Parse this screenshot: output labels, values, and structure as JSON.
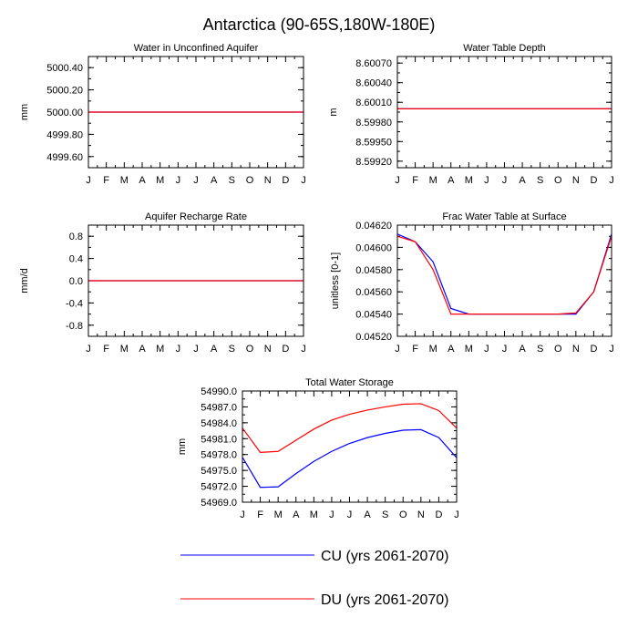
{
  "title": "Antarctica (90-65S,180W-180E)",
  "months": [
    "J",
    "F",
    "M",
    "A",
    "M",
    "J",
    "J",
    "A",
    "S",
    "O",
    "N",
    "D",
    "J"
  ],
  "colors": {
    "cu": "#0000ff",
    "du": "#ff0000"
  },
  "legend": {
    "cu_label": "CU (yrs 2061-2070)",
    "du_label": "DU (yrs 2061-2070)"
  },
  "chart_data": [
    {
      "type": "line",
      "id": "wa",
      "title": "Water in Unconfined Aquifer",
      "ylabel": "mm",
      "ylim": [
        4999.5,
        5000.5
      ],
      "yticks": [
        4999.6,
        4999.8,
        5000.0,
        5000.2,
        5000.4
      ],
      "ytick_labels": [
        "4999.60",
        "4999.80",
        "5000.00",
        "5000.20",
        "5000.40"
      ],
      "series": [
        {
          "key": "cu",
          "values": [
            5000,
            5000,
            5000,
            5000,
            5000,
            5000,
            5000,
            5000,
            5000,
            5000,
            5000,
            5000,
            5000
          ]
        },
        {
          "key": "du",
          "values": [
            5000,
            5000,
            5000,
            5000,
            5000,
            5000,
            5000,
            5000,
            5000,
            5000,
            5000,
            5000,
            5000
          ]
        }
      ]
    },
    {
      "type": "line",
      "id": "zwt",
      "title": "Water Table Depth",
      "ylabel": "m",
      "ylim": [
        8.5991,
        8.6008
      ],
      "yticks": [
        8.5992,
        8.5995,
        8.5998,
        8.6001,
        8.6004,
        8.6007
      ],
      "ytick_labels": [
        "8.59920",
        "8.59950",
        "8.59980",
        "8.60010",
        "8.60040",
        "8.60070"
      ],
      "series": [
        {
          "key": "cu",
          "values": [
            8.6,
            8.6,
            8.6,
            8.6,
            8.6,
            8.6,
            8.6,
            8.6,
            8.6,
            8.6,
            8.6,
            8.6,
            8.6
          ]
        },
        {
          "key": "du",
          "values": [
            8.6,
            8.6,
            8.6,
            8.6,
            8.6,
            8.6,
            8.6,
            8.6,
            8.6,
            8.6,
            8.6,
            8.6,
            8.6
          ]
        }
      ]
    },
    {
      "type": "line",
      "id": "qcharge",
      "title": "Aquifer Recharge Rate",
      "ylabel": "mm/d",
      "ylim": [
        -1.0,
        1.0
      ],
      "yticks": [
        -0.8,
        -0.4,
        0.0,
        0.4,
        0.8
      ],
      "ytick_labels": [
        "-0.8",
        "-0.4",
        "0.0",
        "0.4",
        "0.8"
      ],
      "series": [
        {
          "key": "cu",
          "values": [
            0,
            0,
            0,
            0,
            0,
            0,
            0,
            0,
            0,
            0,
            0,
            0,
            0
          ]
        },
        {
          "key": "du",
          "values": [
            0,
            0,
            0,
            0,
            0,
            0,
            0,
            0,
            0,
            0,
            0,
            0,
            0
          ]
        }
      ]
    },
    {
      "type": "line",
      "id": "frac",
      "title": "Frac Water Table at Surface",
      "ylabel": "unitless [0-1]",
      "ylim": [
        0.0452,
        0.0462
      ],
      "yticks": [
        0.0452,
        0.0454,
        0.0456,
        0.0458,
        0.046,
        0.0462
      ],
      "ytick_labels": [
        "0.04520",
        "0.04540",
        "0.04560",
        "0.04580",
        "0.04600",
        "0.04620"
      ],
      "series": [
        {
          "key": "cu",
          "values": [
            0.04612,
            0.04605,
            0.04587,
            0.04545,
            0.0454,
            0.0454,
            0.0454,
            0.0454,
            0.0454,
            0.0454,
            0.0454,
            0.0456,
            0.04612
          ]
        },
        {
          "key": "du",
          "values": [
            0.0461,
            0.04605,
            0.0458,
            0.0454,
            0.0454,
            0.0454,
            0.0454,
            0.0454,
            0.0454,
            0.0454,
            0.04541,
            0.0456,
            0.0461
          ]
        }
      ]
    },
    {
      "type": "line",
      "id": "tws",
      "title": "Total Water Storage",
      "ylabel": "mm",
      "ylim": [
        54969.0,
        54990.0
      ],
      "yticks": [
        54969.0,
        54972.0,
        54975.0,
        54978.0,
        54981.0,
        54984.0,
        54987.0,
        54990.0
      ],
      "ytick_labels": [
        "54969.0",
        "54972.0",
        "54975.0",
        "54978.0",
        "54981.0",
        "54984.0",
        "54987.0",
        "54990.0"
      ],
      "series": [
        {
          "key": "cu",
          "values": [
            54977.5,
            54971.8,
            54971.9,
            54974.4,
            54976.7,
            54978.6,
            54980.1,
            54981.2,
            54982.0,
            54982.6,
            54982.7,
            54981.2,
            54977.4
          ]
        },
        {
          "key": "du",
          "values": [
            54983.0,
            54978.4,
            54978.6,
            54980.7,
            54982.8,
            54984.5,
            54985.6,
            54986.4,
            54987.0,
            54987.5,
            54987.6,
            54986.3,
            54983.0
          ]
        }
      ]
    }
  ]
}
